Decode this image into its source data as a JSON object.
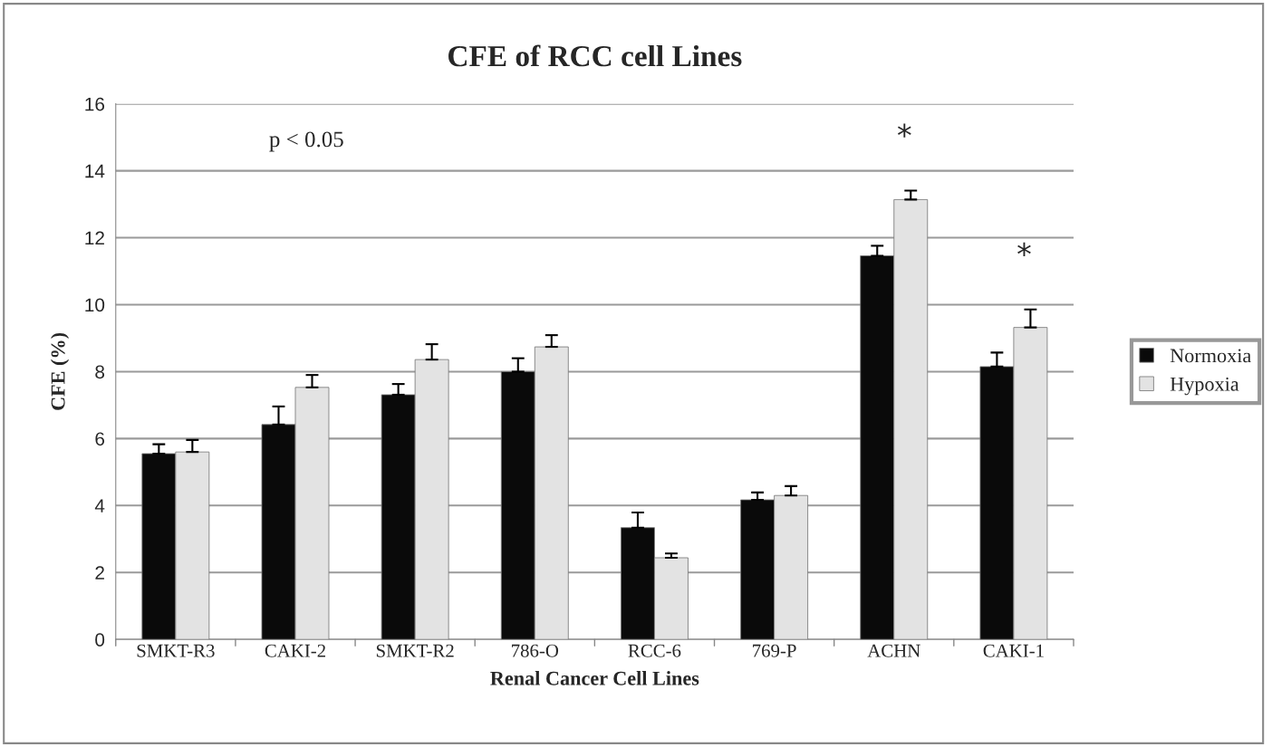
{
  "chart_data": {
    "type": "bar",
    "title": "CFE of RCC cell Lines",
    "xlabel": "Renal Cancer Cell Lines",
    "ylabel": "CFE (%)",
    "categories": [
      "SMKT-R3",
      "CAKI-2",
      "SMKT-R2",
      "786-O",
      "RCC-6",
      "769-P",
      "ACHN",
      "CAKI-1"
    ],
    "series": [
      {
        "name": "Normoxia",
        "color": "#0a0a0a",
        "values": [
          5.55,
          6.42,
          7.31,
          8.0,
          3.34,
          4.17,
          11.46,
          8.15
        ],
        "errors": [
          0.28,
          0.54,
          0.32,
          0.4,
          0.45,
          0.22,
          0.3,
          0.42
        ]
      },
      {
        "name": "Hypoxia",
        "color": "#e3e3e3",
        "values": [
          5.6,
          7.53,
          8.36,
          8.74,
          2.44,
          4.3,
          13.14,
          9.32
        ],
        "errors": [
          0.36,
          0.37,
          0.46,
          0.35,
          0.13,
          0.28,
          0.27,
          0.54
        ]
      }
    ],
    "ylim": [
      0,
      16
    ],
    "yticks": [
      0,
      2,
      4,
      6,
      8,
      10,
      12,
      14,
      16
    ],
    "grid": "y",
    "legend": "right",
    "annotations": [
      "p < 0.05",
      "*",
      "*"
    ]
  }
}
